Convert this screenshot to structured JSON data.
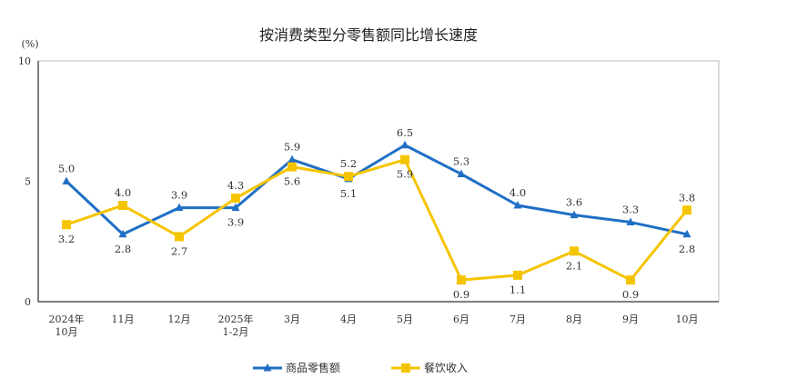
{
  "chart_data": {
    "type": "line",
    "title": "按消费类型分零售额同比增长速度",
    "ylabel": "(%)",
    "xlabel": "",
    "ylim": [
      0,
      10
    ],
    "yticks": [
      "0",
      "5",
      "10"
    ],
    "categories": [
      [
        "2024年",
        "10月"
      ],
      [
        "11月"
      ],
      [
        "12月"
      ],
      [
        "2025年",
        "1-2月"
      ],
      [
        "3月"
      ],
      [
        "4月"
      ],
      [
        "5月"
      ],
      [
        "6月"
      ],
      [
        "7月"
      ],
      [
        "8月"
      ],
      [
        "9月"
      ],
      [
        "10月"
      ]
    ],
    "grid": false,
    "legend_position": "bottom",
    "series": [
      {
        "name": "商品零售额",
        "color": "#1f6fc5",
        "marker": "triangle",
        "values": [
          5.0,
          2.8,
          3.9,
          3.9,
          5.9,
          5.1,
          6.5,
          5.3,
          4.0,
          3.6,
          3.3,
          2.8
        ],
        "labels": [
          "5.0",
          "2.8",
          "3.9",
          "3.9",
          "5.9",
          "5.1",
          "6.5",
          "5.3",
          "4.0",
          "3.6",
          "3.3",
          "2.8"
        ],
        "label_side": [
          "above",
          "below",
          "above",
          "below",
          "above",
          "below",
          "above",
          "above",
          "above",
          "above",
          "above",
          "below"
        ]
      },
      {
        "name": "餐饮收入",
        "color": "#f5c400",
        "marker": "square",
        "values": [
          3.2,
          4.0,
          2.7,
          4.3,
          5.6,
          5.2,
          5.9,
          0.9,
          1.1,
          2.1,
          0.9,
          3.8
        ],
        "labels": [
          "3.2",
          "4.0",
          "2.7",
          "4.3",
          "5.6",
          "5.2",
          "5.9",
          "0.9",
          "1.1",
          "2.1",
          "0.9",
          "3.8"
        ],
        "label_side": [
          "below",
          "above",
          "below",
          "above",
          "below",
          "above",
          "below",
          "below",
          "below",
          "below",
          "below",
          "above"
        ]
      }
    ]
  }
}
